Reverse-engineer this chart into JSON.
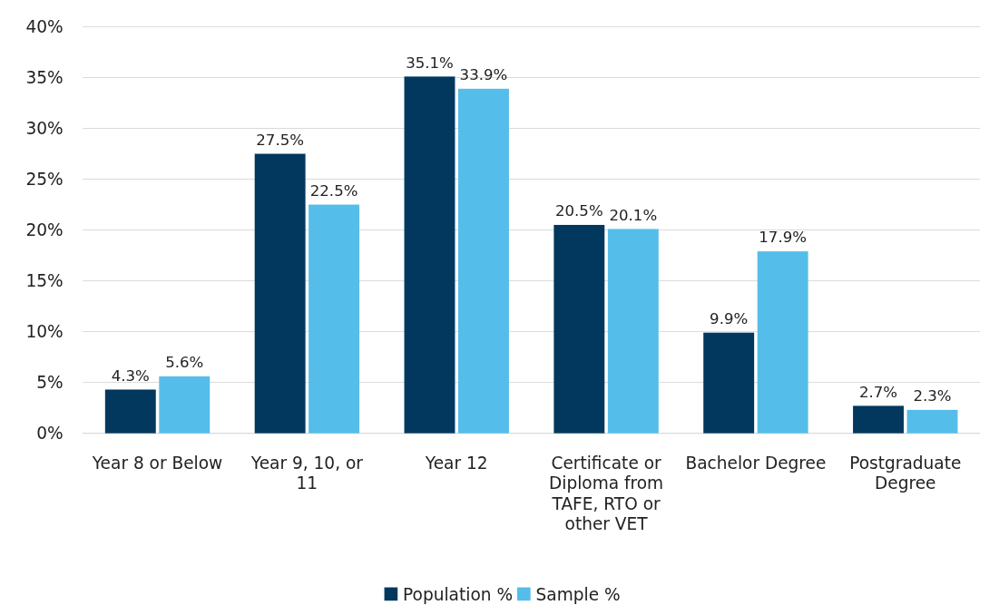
{
  "chart_data": {
    "type": "bar",
    "categories": [
      "Year 8 or Below",
      "Year 9, 10, or 11",
      "Year 12",
      "Certificate or Diploma from TAFE, RTO or other VET",
      "Bachelor Degree",
      "Postgraduate Degree"
    ],
    "series": [
      {
        "name": "Population %",
        "color": "#03385e",
        "values": [
          4.3,
          27.5,
          35.1,
          20.5,
          9.9,
          2.7
        ],
        "value_labels": [
          "4.3%",
          "27.5%",
          "35.1%",
          "20.5%",
          "9.9%",
          "2.7%"
        ]
      },
      {
        "name": "Sample %",
        "color": "#55bdea",
        "values": [
          5.6,
          22.5,
          33.9,
          20.1,
          17.9,
          2.3
        ],
        "value_labels": [
          "5.6%",
          "22.5%",
          "33.9%",
          "20.1%",
          "17.9%",
          "2.3%"
        ]
      }
    ],
    "ylim": [
      0,
      40
    ],
    "yticks": [
      {
        "value": 0,
        "label": "0%"
      },
      {
        "value": 5,
        "label": "5%"
      },
      {
        "value": 10,
        "label": "10%"
      },
      {
        "value": 15,
        "label": "15%"
      },
      {
        "value": 20,
        "label": "20%"
      },
      {
        "value": 25,
        "label": "25%"
      },
      {
        "value": 30,
        "label": "30%"
      },
      {
        "value": 35,
        "label": "35%"
      },
      {
        "value": 40,
        "label": "40%"
      }
    ],
    "grid": "y",
    "legend": "bottom"
  }
}
